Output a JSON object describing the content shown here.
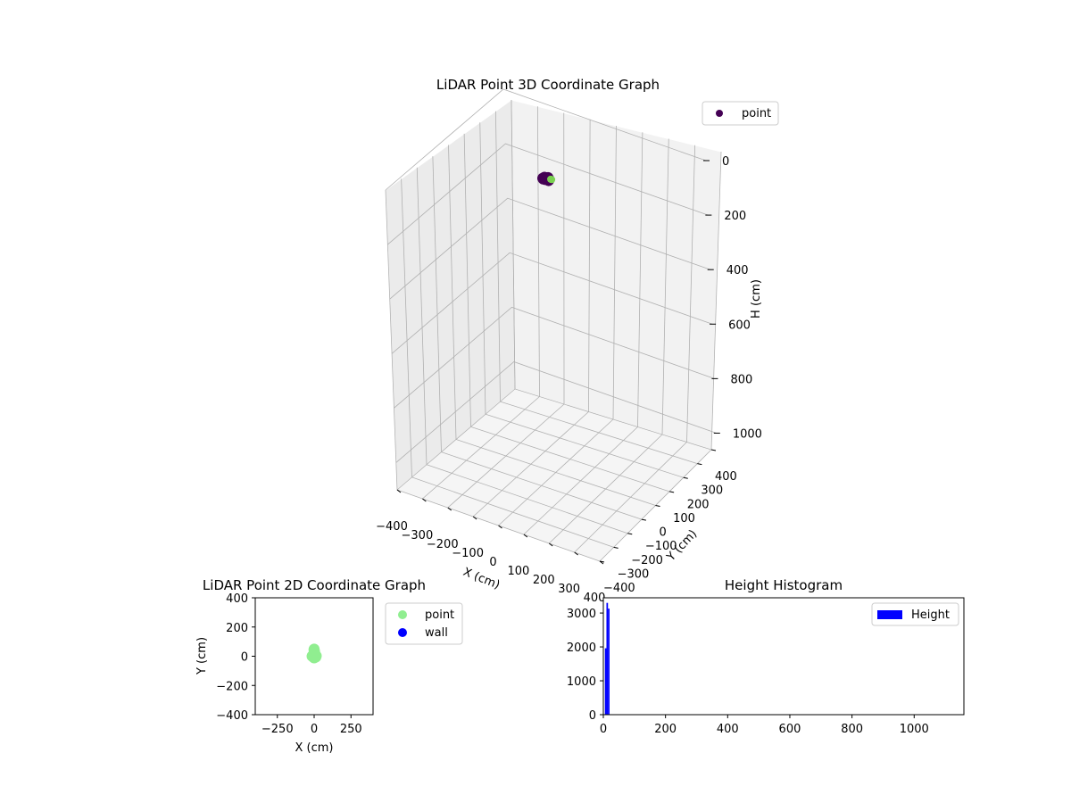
{
  "chart_data": [
    {
      "type": "scatter",
      "title": "LiDAR Point 3D Coordinate Graph",
      "xlabel": "X (cm)",
      "ylabel": "Y (cm)",
      "zlabel": "H (cm)",
      "xlim": [
        -400,
        400
      ],
      "ylim": [
        -400,
        400
      ],
      "zlim": [
        0,
        1100
      ],
      "z_inverted": true,
      "x_ticks": [
        "−400",
        "−300",
        "−200",
        "−100",
        "0",
        "100",
        "200",
        "300",
        "400"
      ],
      "y_ticks": [
        "−400",
        "−300",
        "−200",
        "−100",
        "0",
        "100",
        "200",
        "300",
        "400"
      ],
      "z_ticks": [
        "0",
        "200",
        "400",
        "600",
        "800",
        "1000"
      ],
      "grid": true,
      "legend": {
        "position": "upper-right",
        "entries": [
          "point"
        ]
      },
      "series": [
        {
          "name": "point",
          "color": "#440154",
          "points": [
            [
              -10,
              -5,
              12
            ],
            [
              -5,
              0,
              10
            ],
            [
              0,
              3,
              11
            ],
            [
              5,
              -3,
              9
            ],
            [
              8,
              2,
              13
            ],
            [
              -3,
              6,
              12
            ],
            [
              2,
              -6,
              10
            ],
            [
              10,
              5,
              14
            ],
            [
              -8,
              4,
              11
            ],
            [
              4,
              8,
              10
            ],
            [
              -6,
              -8,
              12
            ],
            [
              12,
              -2,
              15
            ],
            [
              0,
              0,
              8
            ],
            [
              6,
              4,
              12
            ],
            [
              -12,
              0,
              14
            ],
            [
              3,
              -9,
              11
            ]
          ]
        },
        {
          "name": "",
          "color": "#7ad151",
          "points": [
            [
              10,
              15,
              18
            ],
            [
              12,
              18,
              20
            ]
          ]
        }
      ]
    },
    {
      "type": "scatter",
      "title": "LiDAR Point 2D Coordinate Graph",
      "xlabel": "X (cm)",
      "ylabel": "Y (cm)",
      "xlim": [
        -400,
        400
      ],
      "ylim": [
        -400,
        400
      ],
      "x_ticks": [
        "−250",
        "0",
        "250"
      ],
      "y_ticks": [
        "−400",
        "−200",
        "0",
        "200",
        "400"
      ],
      "legend": {
        "position": "outside-right",
        "entries": [
          "point",
          "wall"
        ]
      },
      "series": [
        {
          "name": "point",
          "color": "#90ee90",
          "points": [
            [
              0,
              0
            ],
            [
              -5,
              5
            ],
            [
              5,
              -5
            ],
            [
              10,
              0
            ],
            [
              -10,
              -2
            ],
            [
              3,
              10
            ],
            [
              -3,
              -10
            ],
            [
              8,
              8
            ],
            [
              -8,
              6
            ],
            [
              6,
              -8
            ],
            [
              0,
              12
            ],
            [
              0,
              -12
            ],
            [
              2,
              40
            ],
            [
              0,
              50
            ],
            [
              -2,
              45
            ],
            [
              4,
              30
            ],
            [
              -15,
              0
            ],
            [
              15,
              2
            ],
            [
              12,
              -6
            ],
            [
              -12,
              5
            ]
          ]
        },
        {
          "name": "wall",
          "color": "#0000ff",
          "points": []
        }
      ]
    },
    {
      "type": "bar",
      "title": "Height Histogram",
      "xlabel": "",
      "ylabel": "",
      "xlim": [
        0,
        1160
      ],
      "ylim": [
        0,
        3450
      ],
      "x_ticks": [
        "0",
        "200",
        "400",
        "600",
        "800",
        "1000"
      ],
      "y_ticks": [
        "0",
        "1000",
        "2000",
        "3000"
      ],
      "legend": {
        "position": "upper-right",
        "entries": [
          "Height"
        ]
      },
      "color": "#0000ff",
      "bins": [
        {
          "x0": 5,
          "x1": 10,
          "count": 1960
        },
        {
          "x0": 10,
          "x1": 15,
          "count": 3300
        },
        {
          "x0": 15,
          "x1": 20,
          "count": 3130
        }
      ]
    }
  ]
}
